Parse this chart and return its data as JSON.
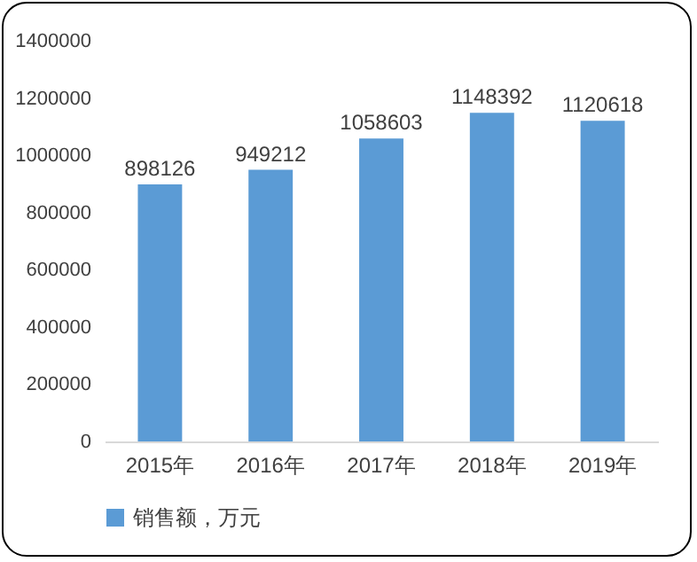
{
  "chart_data": {
    "type": "bar",
    "categories": [
      "2015年",
      "2016年",
      "2017年",
      "2018年",
      "2019年"
    ],
    "series": [
      {
        "name": "销售额，万元",
        "color": "#5b9bd5",
        "values": [
          898126,
          949212,
          1058603,
          1148392,
          1120618
        ]
      }
    ],
    "ylim": [
      0,
      1400000
    ],
    "yticks": [
      0,
      200000,
      400000,
      600000,
      800000,
      1000000,
      1200000,
      1400000
    ],
    "grid": false,
    "legend": "bottom",
    "data_labels": true
  }
}
